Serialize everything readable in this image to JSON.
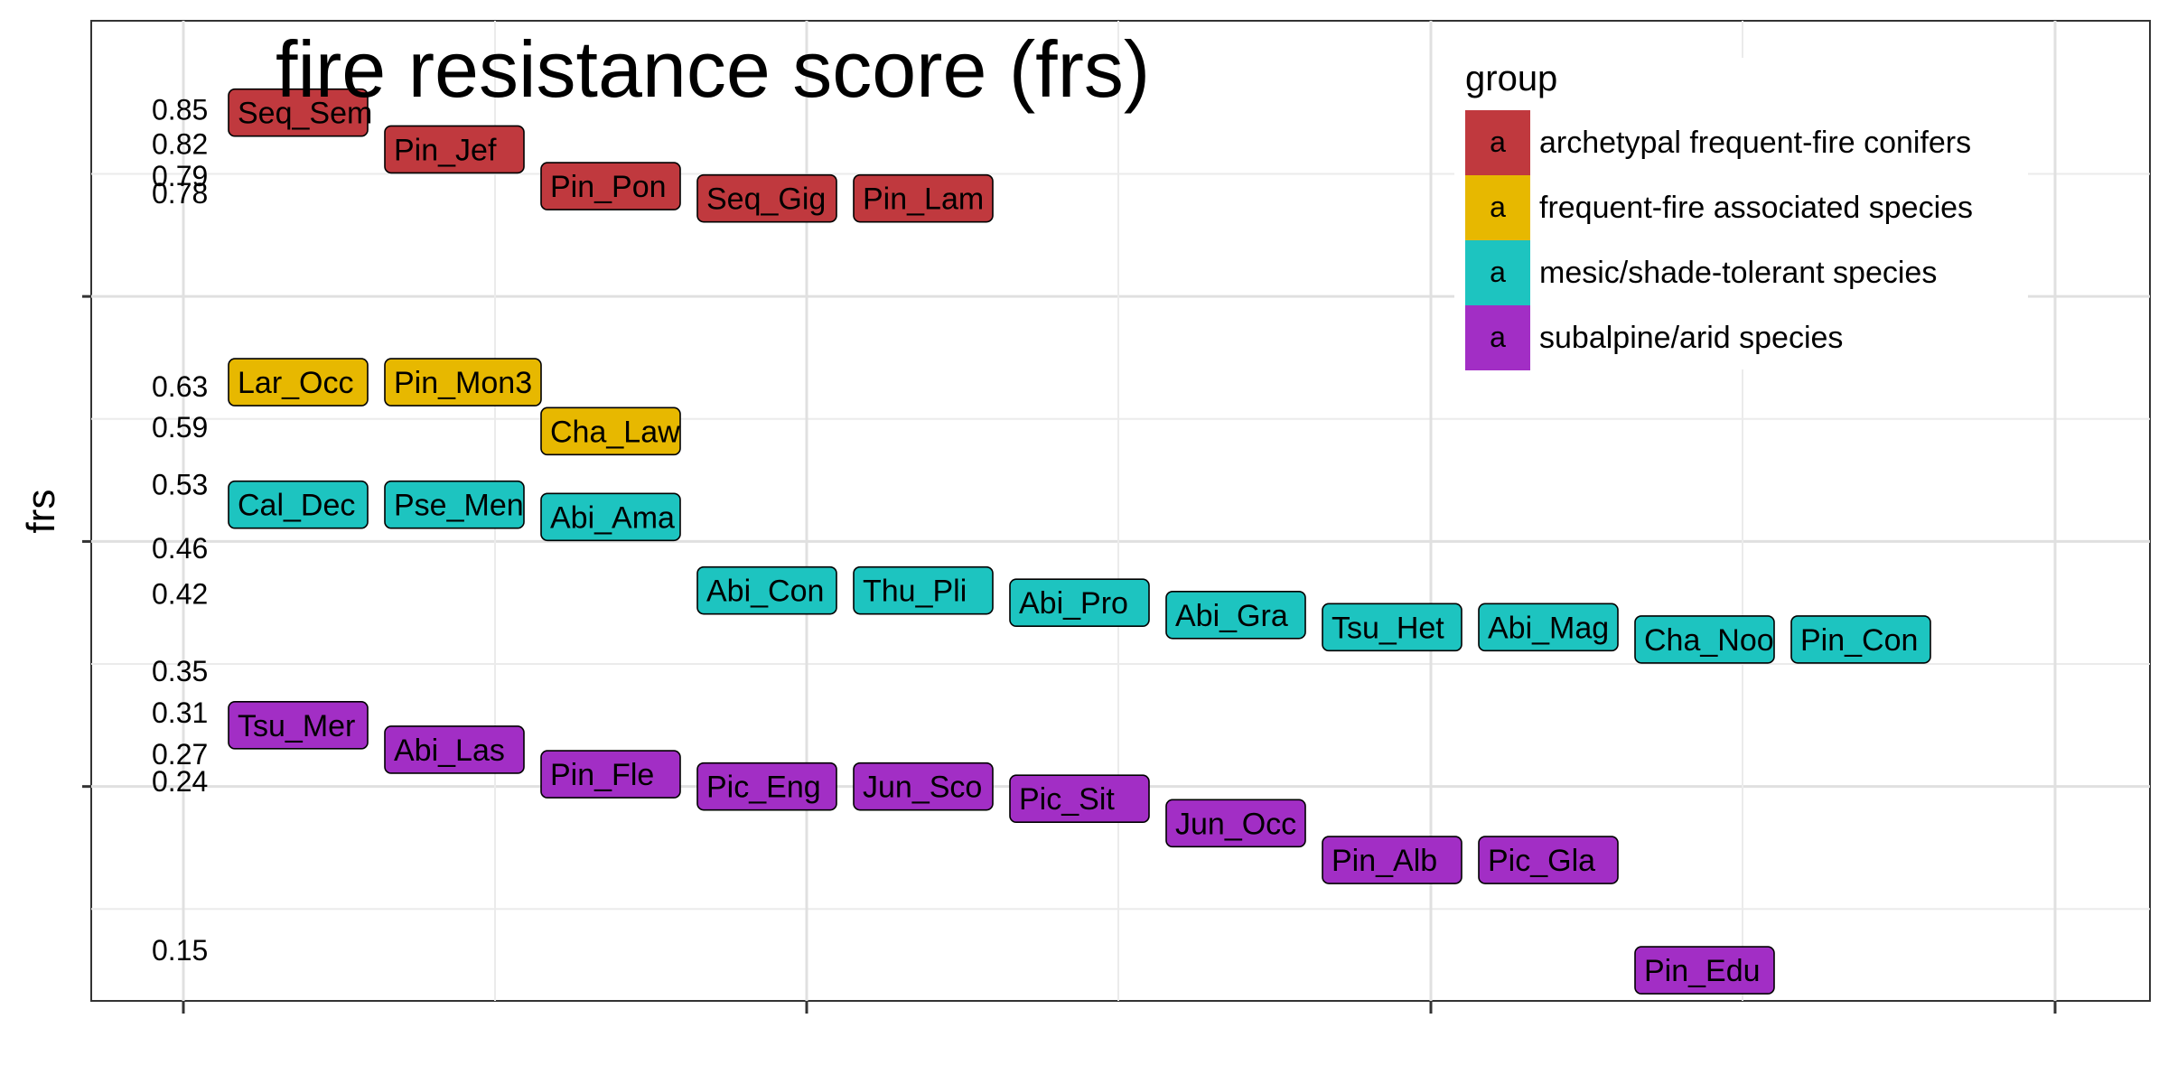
{
  "chart_data": {
    "type": "scatter",
    "title": "fire resistance score (frs)",
    "ylabel": "frs",
    "xlabel": "",
    "ylim": [
      0.125,
      0.925
    ],
    "yticks": [
      0.3,
      0.5,
      0.7
    ],
    "grid": true,
    "legend": {
      "title": "group",
      "position": "top-right",
      "key_glyph": "a",
      "items": [
        {
          "group": "archetypal frequent-fire conifers",
          "color": "#C0393E"
        },
        {
          "group": "frequent-fire associated species",
          "color": "#E7B800"
        },
        {
          "group": "mesic/shade-tolerant species",
          "color": "#1DC4C0"
        },
        {
          "group": "subalpine/arid species",
          "color": "#A22EC5"
        }
      ]
    },
    "y_value_labels": [
      "0.85",
      "0.82",
      "0.79",
      "0.78",
      "0.63",
      "0.59",
      "0.53",
      "0.46",
      "0.42",
      "0.35",
      "0.31",
      "0.27",
      "0.24",
      "0.15"
    ],
    "points": [
      {
        "label": "Seq_Sem",
        "rank": 1,
        "frs": 0.85,
        "group": "archetypal frequent-fire conifers"
      },
      {
        "label": "Pin_Jef",
        "rank": 2,
        "frs": 0.82,
        "group": "archetypal frequent-fire conifers"
      },
      {
        "label": "Pin_Pon",
        "rank": 3,
        "frs": 0.79,
        "group": "archetypal frequent-fire conifers"
      },
      {
        "label": "Seq_Gig",
        "rank": 4,
        "frs": 0.78,
        "group": "archetypal frequent-fire conifers"
      },
      {
        "label": "Pin_Lam",
        "rank": 5,
        "frs": 0.78,
        "group": "archetypal frequent-fire conifers"
      },
      {
        "label": "Lar_Occ",
        "rank": 1,
        "frs": 0.63,
        "group": "frequent-fire associated species"
      },
      {
        "label": "Pin_Mon3",
        "rank": 2,
        "frs": 0.63,
        "group": "frequent-fire associated species"
      },
      {
        "label": "Cha_Law",
        "rank": 3,
        "frs": 0.59,
        "group": "frequent-fire associated species"
      },
      {
        "label": "Cal_Dec",
        "rank": 1,
        "frs": 0.53,
        "group": "mesic/shade-tolerant species"
      },
      {
        "label": "Pse_Men",
        "rank": 2,
        "frs": 0.53,
        "group": "mesic/shade-tolerant species"
      },
      {
        "label": "Abi_Ama",
        "rank": 3,
        "frs": 0.52,
        "group": "mesic/shade-tolerant species"
      },
      {
        "label": "Abi_Con",
        "rank": 4,
        "frs": 0.46,
        "group": "mesic/shade-tolerant species"
      },
      {
        "label": "Thu_Pli",
        "rank": 5,
        "frs": 0.46,
        "group": "mesic/shade-tolerant species"
      },
      {
        "label": "Abi_Pro",
        "rank": 6,
        "frs": 0.45,
        "group": "mesic/shade-tolerant species"
      },
      {
        "label": "Abi_Gra",
        "rank": 7,
        "frs": 0.44,
        "group": "mesic/shade-tolerant species"
      },
      {
        "label": "Tsu_Het",
        "rank": 8,
        "frs": 0.43,
        "group": "mesic/shade-tolerant species"
      },
      {
        "label": "Abi_Mag",
        "rank": 9,
        "frs": 0.43,
        "group": "mesic/shade-tolerant species"
      },
      {
        "label": "Cha_Noo",
        "rank": 10,
        "frs": 0.42,
        "group": "mesic/shade-tolerant species"
      },
      {
        "label": "Pin_Con",
        "rank": 11,
        "frs": 0.42,
        "group": "mesic/shade-tolerant species"
      },
      {
        "label": "Tsu_Mer",
        "rank": 1,
        "frs": 0.35,
        "group": "subalpine/arid species"
      },
      {
        "label": "Abi_Las",
        "rank": 2,
        "frs": 0.33,
        "group": "subalpine/arid species"
      },
      {
        "label": "Pin_Fle",
        "rank": 3,
        "frs": 0.31,
        "group": "subalpine/arid species"
      },
      {
        "label": "Pic_Eng",
        "rank": 4,
        "frs": 0.3,
        "group": "subalpine/arid species"
      },
      {
        "label": "Jun_Sco",
        "rank": 5,
        "frs": 0.3,
        "group": "subalpine/arid species"
      },
      {
        "label": "Pic_Sit",
        "rank": 6,
        "frs": 0.29,
        "group": "subalpine/arid species"
      },
      {
        "label": "Jun_Occ",
        "rank": 7,
        "frs": 0.27,
        "group": "subalpine/arid species"
      },
      {
        "label": "Pin_Alb",
        "rank": 8,
        "frs": 0.24,
        "group": "subalpine/arid species"
      },
      {
        "label": "Pic_Gla",
        "rank": 9,
        "frs": 0.24,
        "group": "subalpine/arid species"
      },
      {
        "label": "Pin_Edu",
        "rank": 10,
        "frs": 0.15,
        "group": "subalpine/arid species"
      }
    ]
  }
}
